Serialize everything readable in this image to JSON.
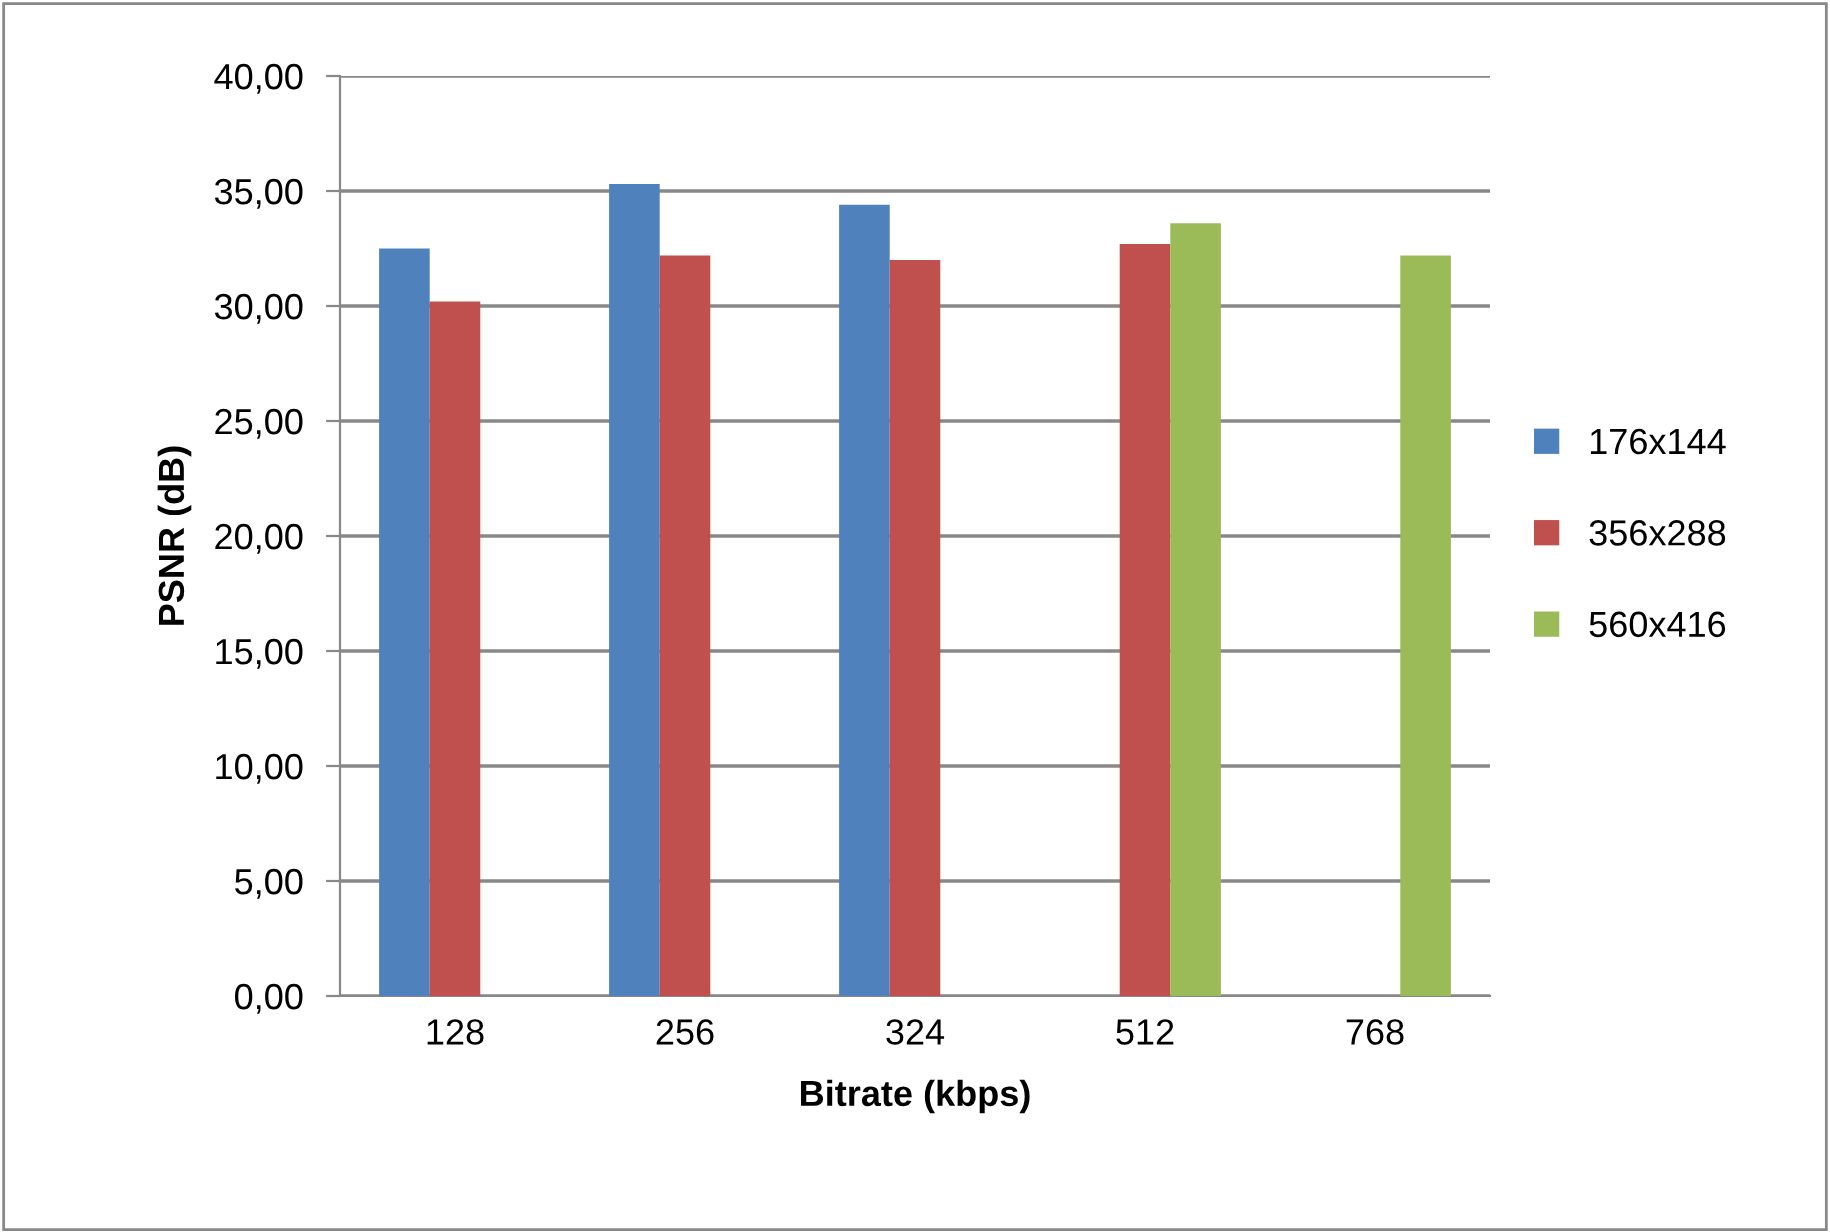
{
  "chart_data": {
    "type": "bar",
    "xlabel": "Bitrate (kbps)",
    "ylabel": "PSNR (dB)",
    "categories": [
      "128",
      "256",
      "324",
      "512",
      "768"
    ],
    "series": [
      {
        "name": "176x144",
        "color": "#4f81bd",
        "values": [
          32.5,
          35.3,
          34.4,
          null,
          null
        ]
      },
      {
        "name": "356x288",
        "color": "#c0504d",
        "values": [
          30.2,
          32.2,
          32.0,
          32.7,
          null
        ]
      },
      {
        "name": "560x416",
        "color": "#9bbb59",
        "values": [
          null,
          null,
          null,
          33.6,
          32.2
        ]
      }
    ],
    "ylim": [
      0,
      40
    ],
    "yticks": [
      {
        "value": 0,
        "label": "0,00"
      },
      {
        "value": 5,
        "label": "5,00"
      },
      {
        "value": 10,
        "label": "10,00"
      },
      {
        "value": 15,
        "label": "15,00"
      },
      {
        "value": 20,
        "label": "20,00"
      },
      {
        "value": 25,
        "label": "25,00"
      },
      {
        "value": 30,
        "label": "30,00"
      },
      {
        "value": 35,
        "label": "35,00"
      },
      {
        "value": 40,
        "label": "40,00"
      }
    ],
    "grid": "y",
    "legend": "right"
  }
}
